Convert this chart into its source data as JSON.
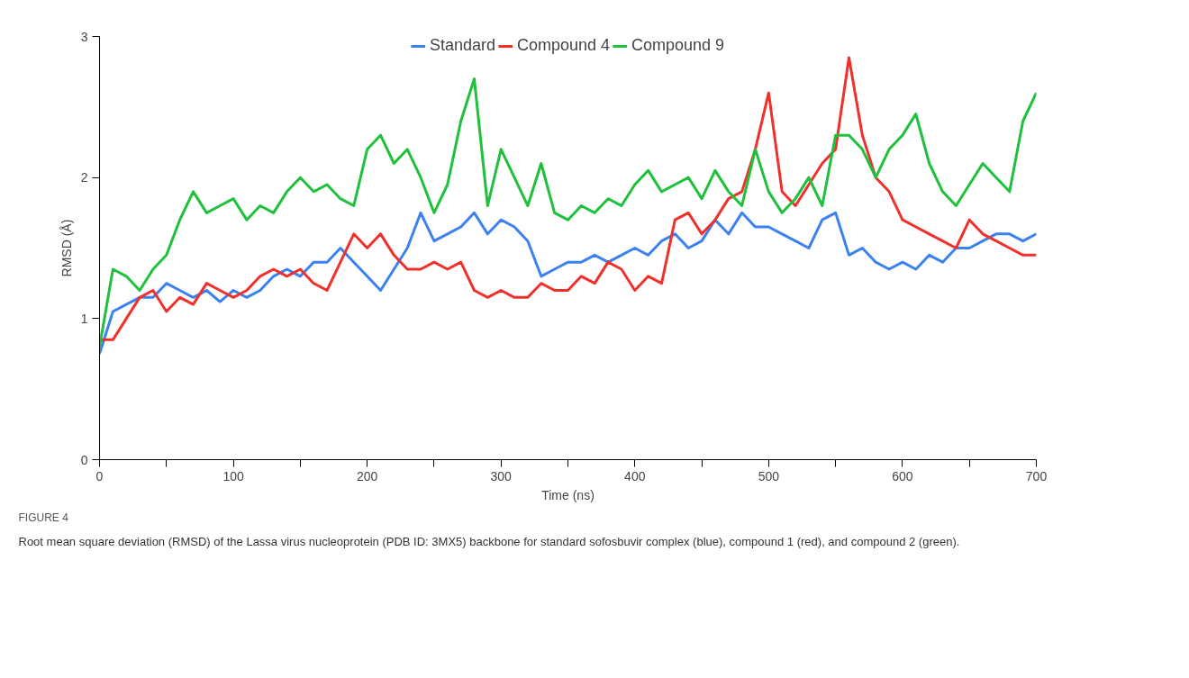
{
  "chart_data": {
    "type": "line",
    "xlabel": "Time (ns)",
    "ylabel": "RMSD (Å)",
    "x": [
      0,
      10,
      20,
      30,
      40,
      50,
      60,
      70,
      80,
      90,
      100,
      110,
      120,
      130,
      140,
      150,
      160,
      170,
      180,
      190,
      200,
      210,
      220,
      230,
      240,
      250,
      260,
      270,
      280,
      290,
      300,
      310,
      320,
      330,
      340,
      350,
      360,
      370,
      380,
      390,
      400,
      410,
      420,
      430,
      440,
      450,
      460,
      470,
      480,
      490,
      500,
      510,
      520,
      530,
      540,
      550,
      560,
      570,
      580,
      590,
      600,
      610,
      620,
      630,
      640,
      650,
      660,
      670,
      680,
      690,
      700
    ],
    "series": [
      {
        "name": "Standard",
        "color": "#3b82f0",
        "values": [
          0.75,
          1.05,
          1.1,
          1.15,
          1.15,
          1.25,
          1.2,
          1.15,
          1.2,
          1.12,
          1.2,
          1.15,
          1.2,
          1.3,
          1.35,
          1.3,
          1.4,
          1.4,
          1.5,
          1.4,
          1.3,
          1.2,
          1.35,
          1.5,
          1.75,
          1.55,
          1.6,
          1.65,
          1.75,
          1.6,
          1.7,
          1.65,
          1.55,
          1.3,
          1.35,
          1.4,
          1.4,
          1.45,
          1.4,
          1.45,
          1.5,
          1.45,
          1.55,
          1.6,
          1.5,
          1.55,
          1.7,
          1.6,
          1.75,
          1.65,
          1.65,
          1.6,
          1.55,
          1.5,
          1.7,
          1.75,
          1.45,
          1.5,
          1.4,
          1.35,
          1.4,
          1.35,
          1.45,
          1.4,
          1.5,
          1.5,
          1.55,
          1.6,
          1.6,
          1.55,
          1.6
        ]
      },
      {
        "name": "Compound 4",
        "color": "#f0302a",
        "values": [
          0.85,
          0.85,
          1.0,
          1.15,
          1.2,
          1.05,
          1.15,
          1.1,
          1.25,
          1.2,
          1.15,
          1.2,
          1.3,
          1.35,
          1.3,
          1.35,
          1.25,
          1.2,
          1.4,
          1.6,
          1.5,
          1.6,
          1.45,
          1.35,
          1.35,
          1.4,
          1.35,
          1.4,
          1.2,
          1.15,
          1.2,
          1.15,
          1.15,
          1.25,
          1.2,
          1.2,
          1.3,
          1.25,
          1.4,
          1.35,
          1.2,
          1.3,
          1.25,
          1.7,
          1.75,
          1.6,
          1.7,
          1.85,
          1.9,
          2.2,
          2.6,
          1.9,
          1.8,
          1.95,
          2.1,
          2.2,
          2.85,
          2.3,
          2.0,
          1.9,
          1.7,
          1.65,
          1.6,
          1.55,
          1.5,
          1.7,
          1.6,
          1.55,
          1.5,
          1.45,
          1.45
        ]
      },
      {
        "name": "Compound 9",
        "color": "#1ec03c",
        "values": [
          0.8,
          1.35,
          1.3,
          1.2,
          1.35,
          1.45,
          1.7,
          1.9,
          1.75,
          1.8,
          1.85,
          1.7,
          1.8,
          1.75,
          1.9,
          2.0,
          1.9,
          1.95,
          1.85,
          1.8,
          2.2,
          2.3,
          2.1,
          2.2,
          2.0,
          1.75,
          1.95,
          2.4,
          2.7,
          1.8,
          2.2,
          2.0,
          1.8,
          2.1,
          1.75,
          1.7,
          1.8,
          1.75,
          1.85,
          1.8,
          1.95,
          2.05,
          1.9,
          1.95,
          2.0,
          1.85,
          2.05,
          1.9,
          1.8,
          2.2,
          1.9,
          1.75,
          1.85,
          2.0,
          1.8,
          2.3,
          2.3,
          2.2,
          2.0,
          2.2,
          2.3,
          2.45,
          2.1,
          1.9,
          1.8,
          1.95,
          2.1,
          2.0,
          1.9,
          2.4,
          2.6
        ]
      }
    ],
    "xlim": [
      0,
      700
    ],
    "ylim": [
      0,
      3
    ],
    "xticks": [
      0,
      {
        "value": 50,
        "label": null
      },
      100,
      {
        "value": 150,
        "label": null
      },
      200,
      {
        "value": 250,
        "label": null
      },
      300,
      {
        "value": 350,
        "label": null
      },
      400,
      {
        "value": 450,
        "label": null
      },
      500,
      {
        "value": 550,
        "label": null
      },
      600,
      {
        "value": 650,
        "label": null
      },
      700
    ],
    "yticks": [
      0,
      1,
      2,
      3
    ],
    "grid": false,
    "legend": "top",
    "marker": "none",
    "line_style": "solid",
    "annotations": [
      "FIGURE 4",
      "Root mean square deviation (RMSD) of the Lassa virus nucleoprotein (PDB ID: 3MX5) backbone for standard sofosbuvir complex (blue), compound 1 (red), and compound 2 (green)."
    ]
  }
}
